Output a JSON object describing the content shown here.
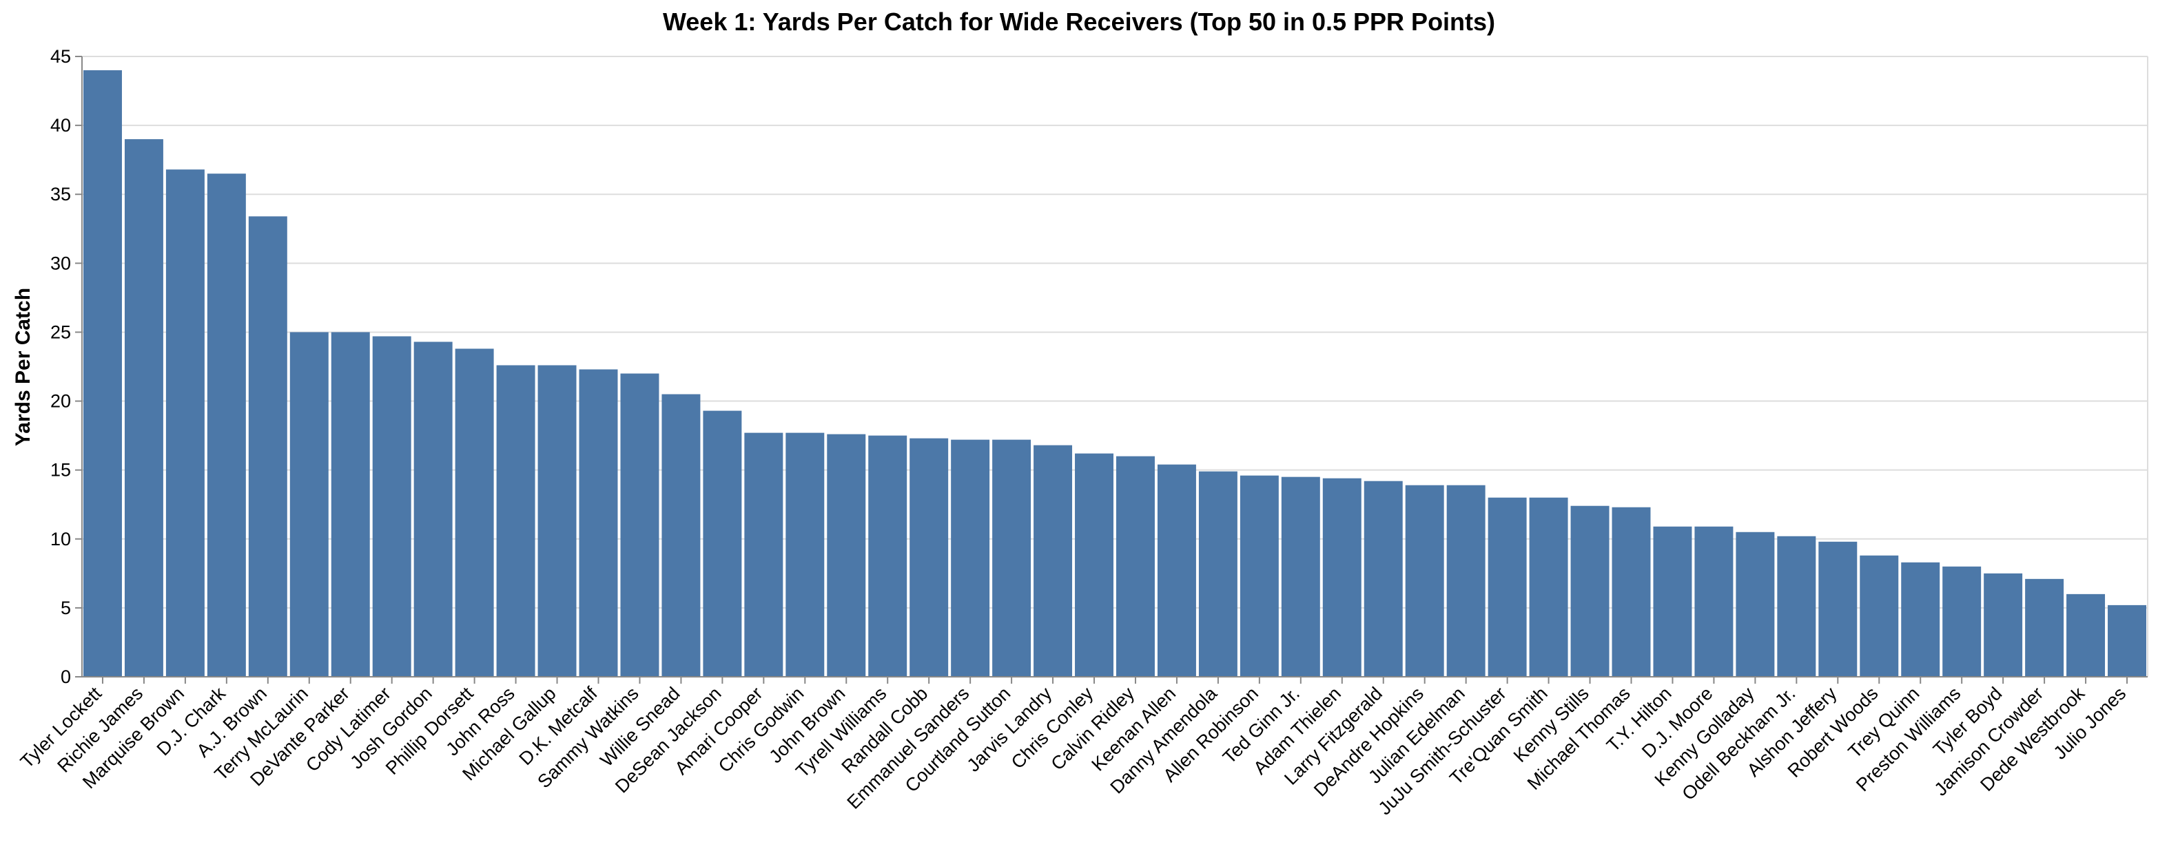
{
  "chart_data": {
    "type": "bar",
    "title": "Week 1: Yards Per Catch for Wide Receivers (Top 50 in 0.5 PPR Points)",
    "xlabel": "",
    "ylabel": "Yards Per Catch",
    "ylim": [
      0,
      45
    ],
    "yticks": [
      0,
      5,
      10,
      15,
      20,
      25,
      30,
      35,
      40,
      45
    ],
    "grid": true,
    "bar_color": "#4c78a8",
    "categories": [
      "Tyler Lockett",
      "Richie James",
      "Marquise Brown",
      "D.J. Chark",
      "A.J. Brown",
      "Terry McLaurin",
      "DeVante Parker",
      "Cody Latimer",
      "Josh Gordon",
      "Phillip Dorsett",
      "John Ross",
      "Michael Gallup",
      "D.K. Metcalf",
      "Sammy Watkins",
      "Willie Snead",
      "DeSean Jackson",
      "Amari Cooper",
      "Chris Godwin",
      "John Brown",
      "Tyrell Williams",
      "Randall Cobb",
      "Emmanuel Sanders",
      "Courtland Sutton",
      "Jarvis Landry",
      "Chris Conley",
      "Calvin Ridley",
      "Keenan Allen",
      "Danny Amendola",
      "Allen Robinson",
      "Ted Ginn Jr.",
      "Adam Thielen",
      "Larry Fitzgerald",
      "DeAndre Hopkins",
      "Julian Edelman",
      "JuJu Smith-Schuster",
      "Tre'Quan Smith",
      "Kenny Stills",
      "Michael Thomas",
      "T.Y. Hilton",
      "D.J. Moore",
      "Kenny Golladay",
      "Odell Beckham Jr.",
      "Alshon Jeffery",
      "Robert Woods",
      "Trey Quinn",
      "Preston Williams",
      "Tyler Boyd",
      "Jamison Crowder",
      "Dede Westbrook",
      "Julio Jones"
    ],
    "values": [
      44.0,
      39.0,
      36.8,
      36.5,
      33.4,
      25.0,
      25.0,
      24.7,
      24.3,
      23.8,
      22.6,
      22.6,
      22.3,
      22.0,
      20.5,
      19.3,
      17.7,
      17.7,
      17.6,
      17.5,
      17.3,
      17.2,
      17.2,
      16.8,
      16.2,
      16.0,
      15.4,
      14.9,
      14.6,
      14.5,
      14.4,
      14.2,
      13.9,
      13.9,
      13.0,
      13.0,
      12.4,
      12.3,
      10.9,
      10.9,
      10.5,
      10.2,
      9.8,
      8.8,
      8.3,
      8.0,
      7.5,
      7.1,
      6.0,
      5.2
    ]
  }
}
